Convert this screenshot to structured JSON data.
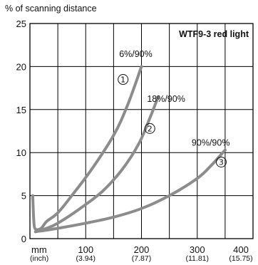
{
  "chart_data": {
    "type": "line",
    "title": "WTF9-3 red light",
    "ylabel": "% of scanning distance",
    "xlabel": "",
    "x_unit_label": "mm",
    "x_unit_label_secondary": "(inch)",
    "xlim": [
      0,
      400
    ],
    "ylim": [
      0,
      25
    ],
    "grid": true,
    "x_ticks": [
      {
        "value": 100,
        "label": "100",
        "sublabel": "(3.94)"
      },
      {
        "value": 200,
        "label": "200",
        "sublabel": "(7.87)"
      },
      {
        "value": 300,
        "label": "300",
        "sublabel": "(11.81)"
      },
      {
        "value": 400,
        "label": "400",
        "sublabel": "(15.75)"
      }
    ],
    "y_ticks": [
      {
        "value": 0,
        "label": "0"
      },
      {
        "value": 5,
        "label": "5"
      },
      {
        "value": 10,
        "label": "10"
      },
      {
        "value": 15,
        "label": "15"
      },
      {
        "value": 20,
        "label": "20"
      },
      {
        "value": 25,
        "label": "25"
      }
    ],
    "series": [
      {
        "name": "6%/90%",
        "marker": "①",
        "color": "#8c8c8c",
        "points": [
          [
            5,
            5
          ],
          [
            7,
            2
          ],
          [
            10,
            1.1
          ],
          [
            20,
            1.2
          ],
          [
            30,
            2
          ],
          [
            50,
            3
          ],
          [
            75,
            5
          ],
          [
            110,
            8
          ],
          [
            150,
            12
          ],
          [
            175,
            15.5
          ],
          [
            200,
            20
          ]
        ],
        "label_at": [
          160,
          21.1
        ],
        "marker_at": [
          167,
          18.5
        ]
      },
      {
        "name": "18%/90%",
        "marker": "②",
        "color": "#8c8c8c",
        "points": [
          [
            10,
            0.8
          ],
          [
            30,
            1.2
          ],
          [
            50,
            1.8
          ],
          [
            90,
            3.5
          ],
          [
            130,
            5.5
          ],
          [
            165,
            8
          ],
          [
            195,
            11
          ],
          [
            215,
            14
          ],
          [
            230,
            16.5
          ]
        ],
        "label_at": [
          210,
          15.9
        ],
        "marker_at": [
          215,
          12.8
        ]
      },
      {
        "name": "90%/90%",
        "marker": "③",
        "color": "#8c8c8c",
        "points": [
          [
            10,
            0.8
          ],
          [
            50,
            1.2
          ],
          [
            100,
            1.8
          ],
          [
            150,
            2.5
          ],
          [
            200,
            3.5
          ],
          [
            250,
            5
          ],
          [
            300,
            7
          ],
          [
            325,
            8.5
          ],
          [
            350,
            10.3
          ]
        ],
        "label_at": [
          290,
          10.8
        ],
        "marker_at": [
          343,
          8.9
        ]
      }
    ],
    "annotations": {
      "title_box_text": "WTF9-3 red light"
    }
  }
}
